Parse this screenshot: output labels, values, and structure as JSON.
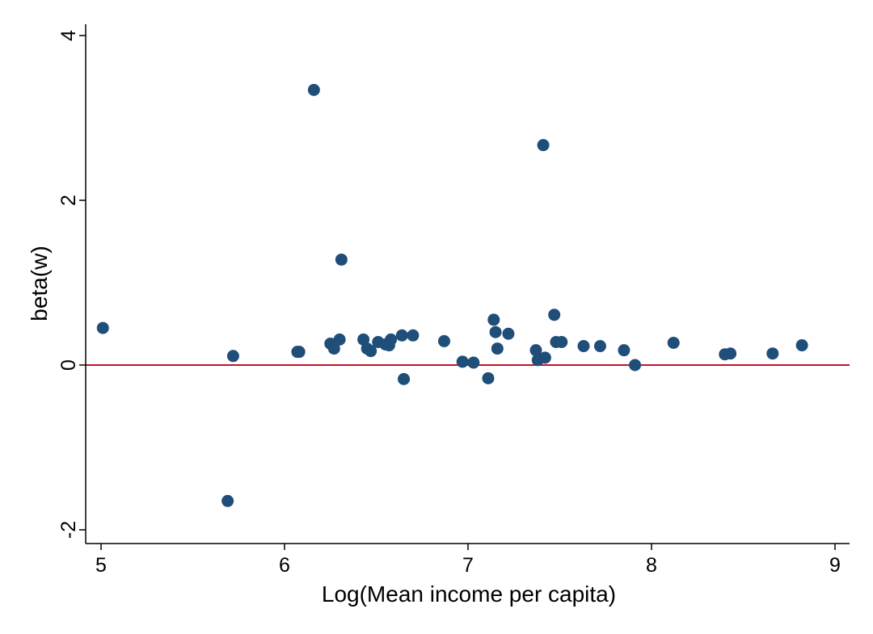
{
  "chart_data": {
    "type": "scatter",
    "xlabel": "Log(Mean income per capita)",
    "ylabel": "beta(w)",
    "x_ticks": [
      "5",
      "6",
      "7",
      "8",
      "9"
    ],
    "y_ticks": [
      "-2",
      "0",
      "2",
      "4"
    ],
    "xlim": [
      4.95,
      9.08
    ],
    "ylim": [
      -2.15,
      4.15
    ],
    "grid": false,
    "reference_line": {
      "y": 0,
      "color": "#c8102e"
    },
    "marker_color": "#1f4e79",
    "series": [
      {
        "points": [
          {
            "x": 5.01,
            "y": 0.45
          },
          {
            "x": 5.69,
            "y": -1.65
          },
          {
            "x": 5.72,
            "y": 0.11
          },
          {
            "x": 6.07,
            "y": 0.16
          },
          {
            "x": 6.08,
            "y": 0.16
          },
          {
            "x": 6.16,
            "y": 3.34
          },
          {
            "x": 6.25,
            "y": 0.26
          },
          {
            "x": 6.27,
            "y": 0.2
          },
          {
            "x": 6.3,
            "y": 0.31
          },
          {
            "x": 6.31,
            "y": 1.28
          },
          {
            "x": 6.43,
            "y": 0.31
          },
          {
            "x": 6.45,
            "y": 0.2
          },
          {
            "x": 6.47,
            "y": 0.17
          },
          {
            "x": 6.51,
            "y": 0.28
          },
          {
            "x": 6.55,
            "y": 0.25
          },
          {
            "x": 6.57,
            "y": 0.24
          },
          {
            "x": 6.58,
            "y": 0.31
          },
          {
            "x": 6.64,
            "y": 0.36
          },
          {
            "x": 6.65,
            "y": -0.17
          },
          {
            "x": 6.7,
            "y": 0.36
          },
          {
            "x": 6.87,
            "y": 0.29
          },
          {
            "x": 6.97,
            "y": 0.04
          },
          {
            "x": 7.03,
            "y": 0.03
          },
          {
            "x": 7.11,
            "y": -0.16
          },
          {
            "x": 7.14,
            "y": 0.55
          },
          {
            "x": 7.15,
            "y": 0.4
          },
          {
            "x": 7.16,
            "y": 0.2
          },
          {
            "x": 7.22,
            "y": 0.38
          },
          {
            "x": 7.37,
            "y": 0.18
          },
          {
            "x": 7.38,
            "y": 0.06
          },
          {
            "x": 7.41,
            "y": 2.67
          },
          {
            "x": 7.42,
            "y": 0.09
          },
          {
            "x": 7.47,
            "y": 0.61
          },
          {
            "x": 7.48,
            "y": 0.28
          },
          {
            "x": 7.51,
            "y": 0.28
          },
          {
            "x": 7.63,
            "y": 0.23
          },
          {
            "x": 7.72,
            "y": 0.23
          },
          {
            "x": 7.85,
            "y": 0.18
          },
          {
            "x": 7.91,
            "y": 0.0
          },
          {
            "x": 8.12,
            "y": 0.27
          },
          {
            "x": 8.4,
            "y": 0.13
          },
          {
            "x": 8.43,
            "y": 0.14
          },
          {
            "x": 8.66,
            "y": 0.14
          },
          {
            "x": 8.82,
            "y": 0.24
          }
        ]
      }
    ]
  }
}
